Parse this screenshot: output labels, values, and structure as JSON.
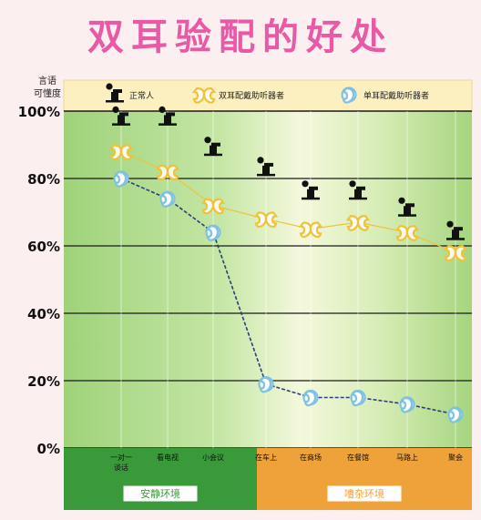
{
  "title": "双耳验配的好处",
  "chart_data": {
    "type": "line",
    "y_axis_title_line1": "言语",
    "y_axis_title_line2": "可懂度",
    "ylim": [
      0,
      100
    ],
    "yticks": [
      "0%",
      "20%",
      "40%",
      "60%",
      "80%",
      "100%"
    ],
    "categories": [
      "一对一\n谈话",
      "看电视",
      "小会议",
      "在车上",
      "在商场",
      "在餐馆",
      "马路上",
      "聚会"
    ],
    "series": [
      {
        "name": "正常人",
        "marker": "person",
        "values": [
          98,
          98,
          89,
          83,
          76,
          76,
          71,
          64
        ]
      },
      {
        "name": "双耳配戴助听器者",
        "marker": "ear-pair",
        "color": "#f0c23a",
        "values": [
          88,
          82,
          72,
          68,
          65,
          67,
          64,
          58
        ]
      },
      {
        "name": "单耳配戴助听器者",
        "marker": "ear-single",
        "color": "#2c3e7a",
        "values": [
          80,
          74,
          64,
          19,
          15,
          15,
          13,
          10
        ]
      }
    ],
    "groups": [
      {
        "label": "安静环境",
        "color": "#3a9a3a"
      },
      {
        "label": "嘈杂环境",
        "color": "#f0a23a"
      }
    ],
    "grid": true,
    "legend": "top"
  }
}
